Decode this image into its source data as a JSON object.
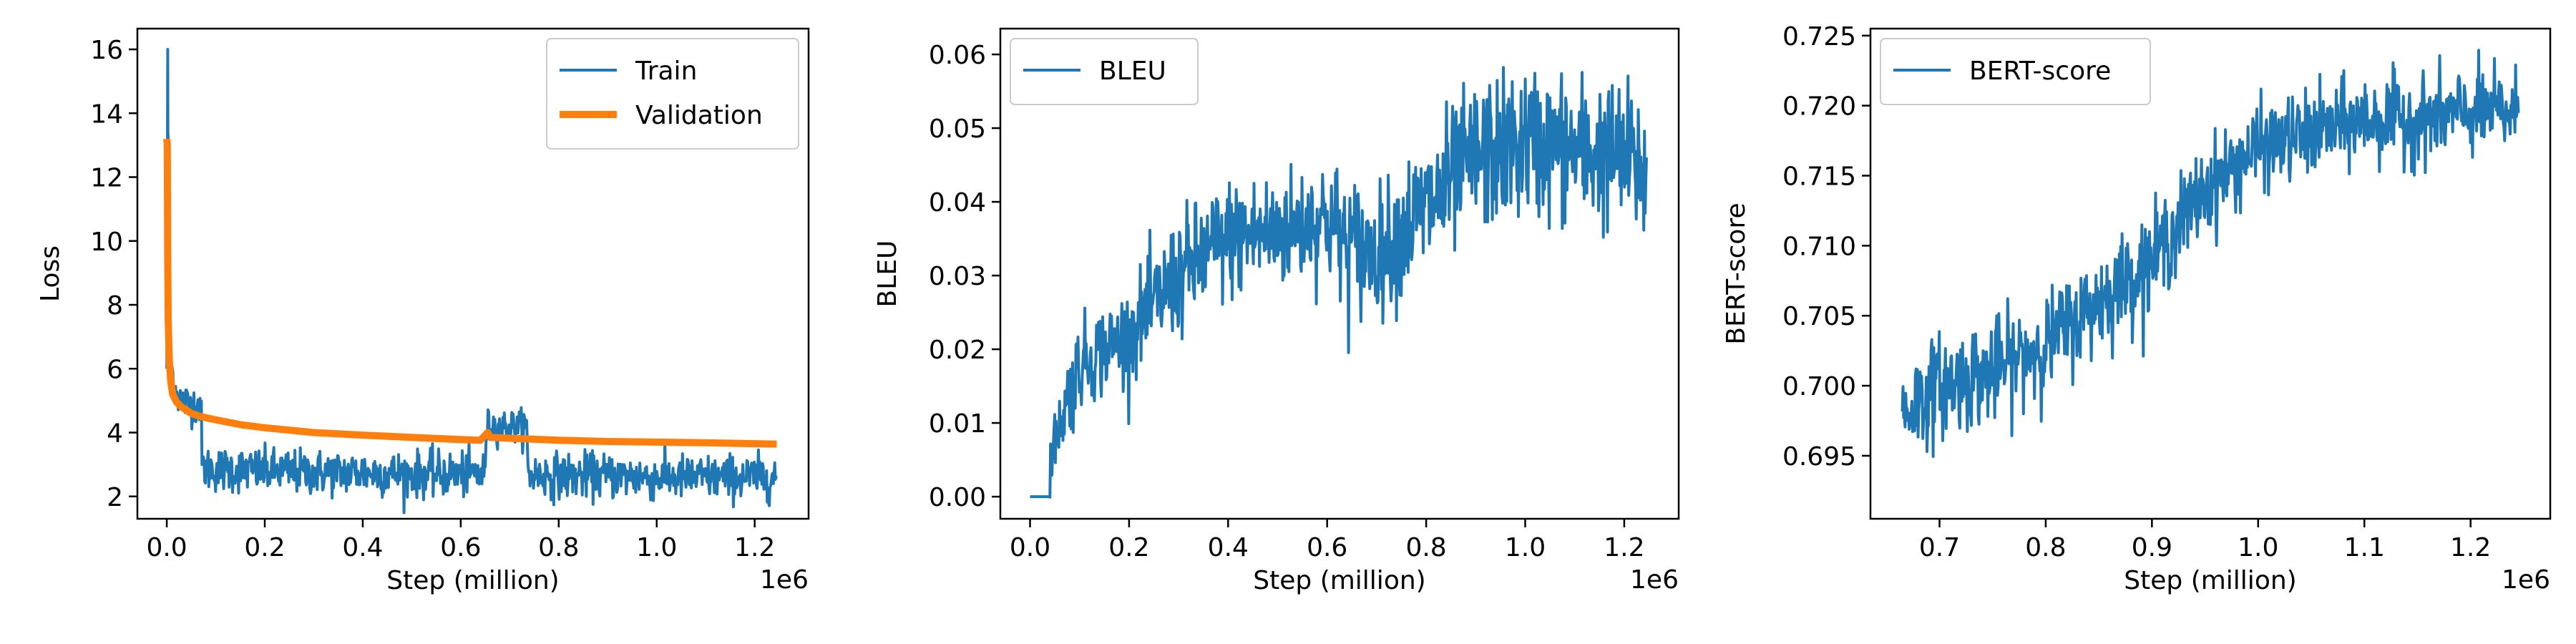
{
  "colors": {
    "train": "#1f77b4",
    "validation": "#ff7f0e",
    "bleu": "#1f77b4",
    "bert": "#1f77b4",
    "axis": "#000000"
  },
  "chart_data": [
    {
      "type": "line",
      "title": "",
      "xlabel": "Step (million)",
      "ylabel": "Loss",
      "x_offset_text": "1e6",
      "xlim": [
        -60000,
        1310000
      ],
      "ylim": [
        1.3,
        16.65
      ],
      "xticks": [
        0,
        200000,
        400000,
        600000,
        800000,
        1000000,
        1200000
      ],
      "xtick_labels": [
        "0.0",
        "0.2",
        "0.4",
        "0.6",
        "0.8",
        "1.0",
        "1.2"
      ],
      "yticks": [
        2,
        4,
        6,
        8,
        10,
        12,
        14,
        16
      ],
      "ytick_labels": [
        "2",
        "4",
        "6",
        "8",
        "10",
        "12",
        "14",
        "16"
      ],
      "legend_position": "top-right",
      "series": [
        {
          "name": "Train",
          "color": "#1f77b4",
          "style": "noisy",
          "x": [
            0,
            2000,
            4000,
            6000,
            10000,
            15000,
            20000,
            30000,
            50000,
            70000,
            72000,
            100000,
            200000,
            300000,
            400000,
            500000,
            600000,
            650000,
            652000,
            700000,
            735000,
            737000,
            800000,
            900000,
            1000000,
            1100000,
            1200000,
            1245000
          ],
          "y": [
            6.0,
            16.0,
            9.0,
            7.5,
            6.0,
            5.6,
            5.2,
            5.0,
            4.9,
            4.9,
            2.9,
            2.85,
            2.8,
            2.75,
            2.75,
            2.7,
            2.7,
            2.7,
            4.2,
            4.2,
            4.2,
            2.7,
            2.65,
            2.65,
            2.6,
            2.6,
            2.6,
            2.6
          ],
          "noise": [
            0,
            0,
            0,
            0,
            0.3,
            0.3,
            0.3,
            0.3,
            0.3,
            0.3,
            0.35,
            0.35,
            0.35,
            0.35,
            0.35,
            0.35,
            0.35,
            0.35,
            0.25,
            0.25,
            0.25,
            0.35,
            0.35,
            0.35,
            0.35,
            0.35,
            0.35,
            0.35
          ]
        },
        {
          "name": "Validation",
          "color": "#ff7f0e",
          "style": "thick",
          "x": [
            0,
            1000,
            2000,
            3000,
            5000,
            8000,
            12000,
            20000,
            30000,
            50000,
            70000,
            100000,
            150000,
            200000,
            300000,
            400000,
            500000,
            600000,
            640000,
            655000,
            660000,
            700000,
            800000,
            900000,
            1000000,
            1100000,
            1200000,
            1245000
          ],
          "y": [
            13.2,
            13.0,
            9.5,
            7.5,
            6.3,
            5.6,
            5.2,
            4.95,
            4.8,
            4.6,
            4.5,
            4.4,
            4.25,
            4.15,
            4.0,
            3.92,
            3.85,
            3.78,
            3.76,
            4.0,
            3.85,
            3.82,
            3.76,
            3.72,
            3.7,
            3.68,
            3.65,
            3.64
          ]
        }
      ]
    },
    {
      "type": "line",
      "title": "",
      "xlabel": "Step (million)",
      "ylabel": "BLEU",
      "x_offset_text": "1e6",
      "xlim": [
        -60000,
        1310000
      ],
      "ylim": [
        -0.003,
        0.0635
      ],
      "xticks": [
        0,
        200000,
        400000,
        600000,
        800000,
        1000000,
        1200000
      ],
      "xtick_labels": [
        "0.0",
        "0.2",
        "0.4",
        "0.6",
        "0.8",
        "1.0",
        "1.2"
      ],
      "yticks": [
        0,
        0.01,
        0.02,
        0.03,
        0.04,
        0.05,
        0.06
      ],
      "ytick_labels": [
        "0.00",
        "0.01",
        "0.02",
        "0.03",
        "0.04",
        "0.05",
        "0.06"
      ],
      "legend_position": "top-left",
      "series": [
        {
          "name": "BLEU",
          "color": "#1f77b4",
          "style": "noisy",
          "x": [
            0,
            40000,
            41000,
            60000,
            70000,
            100000,
            200000,
            300000,
            400000,
            500000,
            600000,
            640000,
            700000,
            800000,
            900000,
            1000000,
            1100000,
            1200000,
            1245000
          ],
          "y": [
            0,
            0,
            0.005,
            0.01,
            0.012,
            0.018,
            0.022,
            0.03,
            0.035,
            0.036,
            0.038,
            0.034,
            0.033,
            0.039,
            0.046,
            0.048,
            0.047,
            0.046,
            0.044
          ],
          "noise": [
            0,
            0,
            0.002,
            0.002,
            0.003,
            0.003,
            0.003,
            0.004,
            0.004,
            0.004,
            0.004,
            0.005,
            0.004,
            0.005,
            0.005,
            0.005,
            0.005,
            0.005,
            0.005
          ]
        }
      ]
    },
    {
      "type": "line",
      "title": "",
      "xlabel": "Step (million)",
      "ylabel": "BERT-score",
      "x_offset_text": "1e6",
      "xlim": [
        635000,
        1275000
      ],
      "ylim": [
        0.6905,
        0.7255
      ],
      "xticks": [
        700000,
        800000,
        900000,
        1000000,
        1100000,
        1200000
      ],
      "xtick_labels": [
        "0.7",
        "0.8",
        "0.9",
        "1.0",
        "1.1",
        "1.2"
      ],
      "yticks": [
        0.695,
        0.7,
        0.705,
        0.71,
        0.715,
        0.72,
        0.725
      ],
      "ytick_labels": [
        "0.695",
        "0.700",
        "0.705",
        "0.710",
        "0.715",
        "0.720",
        "0.725"
      ],
      "legend_position": "top-left",
      "series": [
        {
          "name": "BERT-score",
          "color": "#1f77b4",
          "style": "noisy",
          "x": [
            665000,
            700000,
            750000,
            800000,
            850000,
            900000,
            950000,
            1000000,
            1050000,
            1100000,
            1150000,
            1200000,
            1245000
          ],
          "y": [
            0.698,
            0.7,
            0.701,
            0.703,
            0.706,
            0.709,
            0.714,
            0.717,
            0.718,
            0.719,
            0.719,
            0.7195,
            0.7195
          ],
          "noise": [
            0.0018,
            0.0018,
            0.0018,
            0.0017,
            0.0017,
            0.0017,
            0.0016,
            0.0015,
            0.0015,
            0.0015,
            0.0015,
            0.0015,
            0.0015
          ]
        }
      ]
    }
  ]
}
